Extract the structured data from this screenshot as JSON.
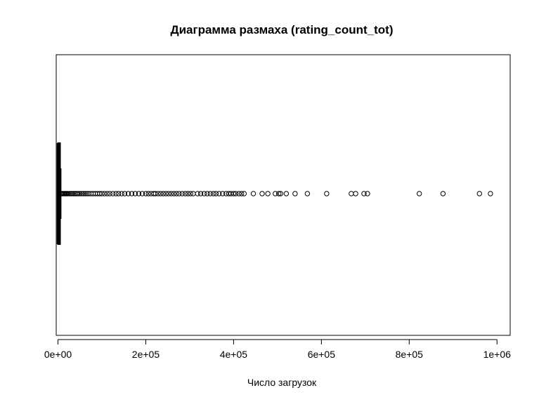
{
  "chart_data": {
    "type": "boxplot",
    "orientation": "horizontal",
    "title": "Диаграмма размаха (rating_count_tot)",
    "xlabel": "Число загрузок",
    "ylabel": "",
    "xlim": [
      -4000,
      1030000
    ],
    "xticks": [
      0,
      200000,
      400000,
      600000,
      800000,
      1000000
    ],
    "xtick_labels": [
      "0e+00",
      "2e+05",
      "4e+05",
      "6e+05",
      "8e+05",
      "1e+06"
    ],
    "box": {
      "min": 0,
      "q1": 28,
      "median": 300,
      "q3": 2800,
      "whisker_high": 7000
    },
    "outliers": [
      8000,
      10000,
      12000,
      14000,
      16000,
      18000,
      20000,
      22000,
      25000,
      28000,
      31000,
      34000,
      37000,
      40000,
      43000,
      46000,
      50000,
      54000,
      58000,
      62000,
      66000,
      70000,
      75000,
      80000,
      85000,
      90000,
      95000,
      100000,
      106000,
      112000,
      118000,
      125000,
      132000,
      138000,
      145000,
      152000,
      160000,
      168000,
      176000,
      184000,
      192000,
      200000,
      206000,
      212000,
      218000,
      222000,
      228000,
      234000,
      240000,
      246000,
      252000,
      258000,
      264000,
      270000,
      276000,
      283000,
      290000,
      296000,
      302000,
      308000,
      318000,
      325000,
      333000,
      340000,
      347000,
      354000,
      360000,
      367000,
      375000,
      383000,
      389000,
      394000,
      400000,
      405000,
      412000,
      418000,
      424000,
      445000,
      465000,
      478000,
      495000,
      503000,
      507000,
      520000,
      540000,
      568000,
      612000,
      668000,
      678000,
      697000,
      705000,
      823000,
      877000,
      960000,
      985000
    ],
    "grid": false,
    "legend": "none"
  }
}
